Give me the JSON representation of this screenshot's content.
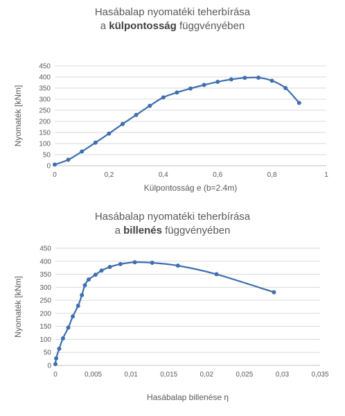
{
  "chart_data": [
    {
      "type": "line",
      "title_line1": "Hasábalap nyomatéki teherbírása",
      "title_line2_pre": "a ",
      "title_line2_bold": "külpontosság",
      "title_line2_post": " függvényében",
      "xlabel": "Külpontosság e (b=2.4m)",
      "ylabel": "Nyomaték  [kNm]",
      "xlim": [
        0,
        1
      ],
      "ylim": [
        0,
        450
      ],
      "xticks": [
        "0",
        "0,2",
        "0,4",
        "0,6",
        "0,8",
        "1"
      ],
      "yticks": [
        "0",
        "50",
        "100",
        "150",
        "200",
        "250",
        "300",
        "350",
        "400",
        "450"
      ],
      "grid": true,
      "series": [
        {
          "x": [
            0,
            0.05,
            0.1,
            0.15,
            0.2,
            0.25,
            0.3,
            0.35,
            0.4,
            0.45,
            0.5,
            0.55,
            0.6,
            0.65,
            0.7,
            0.75,
            0.8,
            0.85,
            0.9
          ],
          "y": [
            5,
            27,
            64,
            104,
            145,
            188,
            229,
            270,
            308,
            330,
            348,
            364,
            378,
            389,
            396,
            397,
            383,
            350,
            283
          ]
        }
      ],
      "line_color": "#3f6fae"
    },
    {
      "type": "line",
      "title_line1": "Hasábalap nyomatéki teherbírása",
      "title_line2_pre": "a ",
      "title_line2_bold": "billenés",
      "title_line2_post": " függvényében",
      "xlabel": "Hasábalap billenése η",
      "ylabel": "Nyomaték [kNm]",
      "xlim": [
        0,
        0.035
      ],
      "ylim": [
        0,
        450
      ],
      "xticks": [
        "0",
        "0,005",
        "0,01",
        "0,015",
        "0,02",
        "0,025",
        "0,03",
        "0,035"
      ],
      "yticks": [
        "0",
        "50",
        "100",
        "150",
        "200",
        "250",
        "300",
        "350",
        "400",
        "450"
      ],
      "grid": true,
      "series": [
        {
          "x": [
            0,
            0.0001,
            0.0005,
            0.001,
            0.0017,
            0.0023,
            0.003,
            0.0035,
            0.0039,
            0.0044,
            0.0053,
            0.0061,
            0.0072,
            0.0086,
            0.0105,
            0.0128,
            0.0162,
            0.0213,
            0.0289
          ],
          "y": [
            5,
            27,
            64,
            104,
            145,
            188,
            229,
            270,
            308,
            330,
            348,
            364,
            378,
            389,
            396,
            394,
            383,
            350,
            281
          ]
        }
      ],
      "line_color": "#3f6fae"
    }
  ]
}
